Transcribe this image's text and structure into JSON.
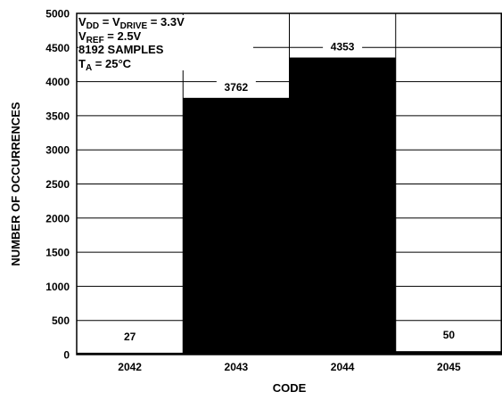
{
  "chart_data": {
    "type": "bar",
    "categories": [
      "2042",
      "2043",
      "2044",
      "2045"
    ],
    "values": [
      27,
      3762,
      4353,
      50
    ],
    "data_labels": [
      "27",
      "3762",
      "4353",
      "50"
    ],
    "xlabel": "CODE",
    "ylabel": "NUMBER OF OCCURRENCES",
    "ylim": [
      0,
      5000
    ],
    "yticks": [
      "0",
      "500",
      "1000",
      "1500",
      "2000",
      "2500",
      "3000",
      "3500",
      "4000",
      "4500",
      "5000"
    ],
    "grid": true,
    "bar_color": "#000000",
    "annotations": [
      {
        "parts": [
          [
            "V",
            ""
          ],
          [
            "DD",
            "sub"
          ],
          [
            " = V",
            ""
          ],
          [
            "DRIVE",
            "sub"
          ],
          [
            " = 3.3V",
            ""
          ]
        ]
      },
      {
        "parts": [
          [
            "V",
            ""
          ],
          [
            "REF",
            "sub"
          ],
          [
            " = 2.5V",
            ""
          ]
        ]
      },
      {
        "parts": [
          [
            "8192 SAMPLES",
            ""
          ]
        ]
      },
      {
        "parts": [
          [
            "T",
            ""
          ],
          [
            "A",
            "sub"
          ],
          [
            " = 25°C",
            ""
          ]
        ]
      }
    ]
  }
}
